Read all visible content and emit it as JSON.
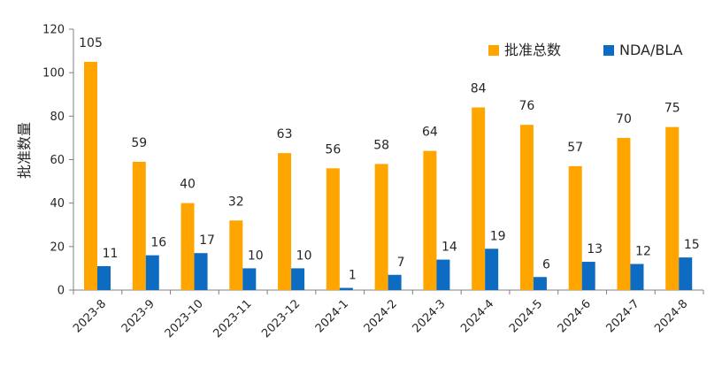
{
  "chart_data": {
    "type": "bar",
    "ylabel": "批准数量",
    "ylim": [
      0,
      120
    ],
    "yticks": [
      0,
      20,
      40,
      60,
      80,
      100,
      120
    ],
    "categories": [
      "2023-8",
      "2023-9",
      "2023-10",
      "2023-11",
      "2023-12",
      "2024-1",
      "2024-2",
      "2024-3",
      "2024-4",
      "2024-5",
      "2024-6",
      "2024-7",
      "2024-8"
    ],
    "series": [
      {
        "name": "批准总数",
        "color": "#FFA500",
        "values": [
          105,
          59,
          40,
          32,
          63,
          56,
          58,
          64,
          84,
          76,
          57,
          70,
          75
        ]
      },
      {
        "name": "NDA/BLA",
        "color": "#0E6BC2",
        "values": [
          11,
          16,
          17,
          10,
          10,
          1,
          7,
          14,
          19,
          6,
          13,
          12,
          15
        ]
      }
    ],
    "legend_position": "top-right",
    "grid": false
  }
}
